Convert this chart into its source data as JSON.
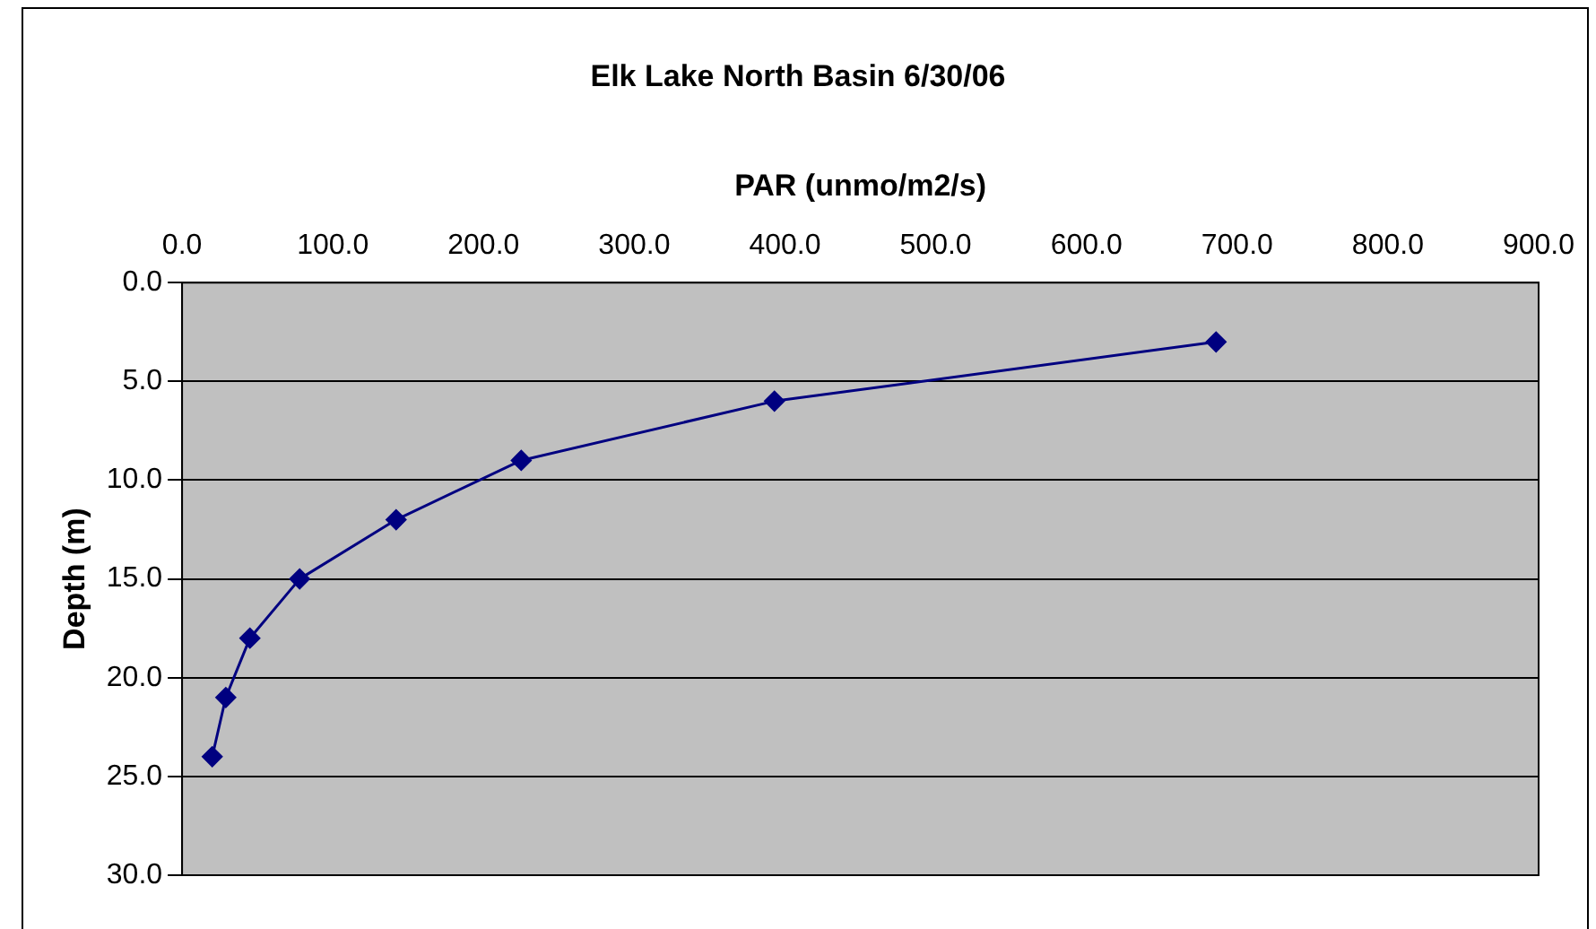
{
  "chart_data": {
    "type": "line",
    "title": "Elk Lake North Basin 6/30/06",
    "xlabel": "PAR (unmo/m2/s)",
    "ylabel": "Depth (m)",
    "x": [
      686,
      393,
      225,
      142,
      78,
      45,
      29,
      20
    ],
    "series": [
      {
        "color": "#000080",
        "values": [
          3,
          6,
          9,
          12,
          15,
          18,
          21,
          24
        ]
      }
    ],
    "xlim": [
      0,
      900
    ],
    "xticks": [
      {
        "value": 0,
        "label": "0.0"
      },
      {
        "value": 100,
        "label": "100.0"
      },
      {
        "value": 200,
        "label": "200.0"
      },
      {
        "value": 300,
        "label": "300.0"
      },
      {
        "value": 400,
        "label": "400.0"
      },
      {
        "value": 500,
        "label": "500.0"
      },
      {
        "value": 600,
        "label": "600.0"
      },
      {
        "value": 700,
        "label": "700.0"
      },
      {
        "value": 800,
        "label": "800.0"
      },
      {
        "value": 900,
        "label": "900.0"
      }
    ],
    "ylim": [
      30,
      0
    ],
    "yticks": [
      {
        "value": 0,
        "label": "0.0"
      },
      {
        "value": 5,
        "label": "5.0"
      },
      {
        "value": 10,
        "label": "10.0"
      },
      {
        "value": 15,
        "label": "15.0"
      },
      {
        "value": 20,
        "label": "20.0"
      },
      {
        "value": 25,
        "label": "25.0"
      },
      {
        "value": 30,
        "label": "30.0"
      }
    ],
    "grid": "y",
    "legend": false,
    "marker": "diamond",
    "line_style": "solid"
  }
}
